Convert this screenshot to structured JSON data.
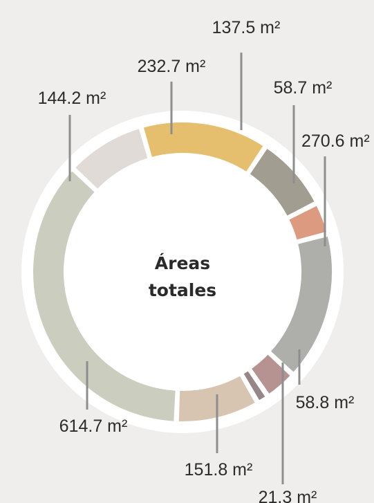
{
  "chart_data": {
    "type": "pie",
    "variant": "donut",
    "title": "Áreas totales",
    "title_lines": [
      "Áreas",
      "totales"
    ],
    "unit": "m²",
    "slices": [
      {
        "label": "232.7 m²",
        "value": 232.7,
        "color": "#e6bf6e"
      },
      {
        "label": "137.5 m²",
        "value": 137.5,
        "color": "#a29d91"
      },
      {
        "label": "58.7 m²",
        "value": 58.7,
        "color": "#dc9a80"
      },
      {
        "label": "270.6 m²",
        "value": 270.6,
        "color": "#aeaeab"
      },
      {
        "label": "58.8 m²",
        "value": 58.8,
        "color": "#b69391"
      },
      {
        "label": "21.3 m²",
        "value": 21.3,
        "color": "#968688"
      },
      {
        "label": "151.8 m²",
        "value": 151.8,
        "color": "#d7c5b1"
      },
      {
        "label": "614.7 m²",
        "value": 614.7,
        "color": "#cbcdbf"
      },
      {
        "label": "144.2 m²",
        "value": 144.2,
        "color": "#e0dbd6"
      }
    ],
    "background": "#efeeec",
    "ring_background": "#ffffff",
    "leader_color": "#8e8e8e"
  }
}
